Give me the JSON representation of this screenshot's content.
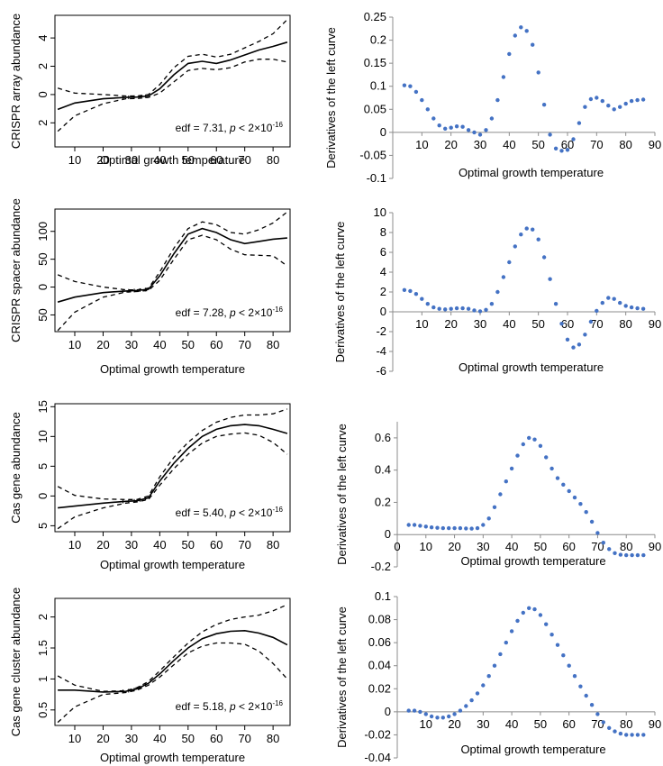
{
  "chart_data": [
    {
      "panel": "a-left",
      "type": "line",
      "xlabel": "Optimal growth temperature",
      "ylabel": "CRISPR array abundance",
      "annotation": {
        "pre": "edf = 7.31, ",
        "p": "p",
        "mid": " < 2×10",
        "exp": "-16"
      },
      "xlim": [
        3,
        86
      ],
      "ylim": [
        -3.7,
        5.6
      ],
      "xticks": [
        10,
        20,
        30,
        40,
        50,
        60,
        70,
        80
      ],
      "xtick_labels": [
        "10",
        "20",
        "30",
        "40",
        "50",
        "60",
        "70",
        "80"
      ],
      "yticks": [
        4,
        2,
        0,
        -2
      ],
      "ytick_labels": [
        "4",
        "2",
        "0",
        "2"
      ],
      "x": [
        4,
        10,
        20,
        28,
        32,
        36,
        40,
        45,
        50,
        55,
        60,
        65,
        70,
        75,
        80,
        85
      ],
      "series": [
        {
          "style": "solid",
          "values": [
            -1.05,
            -0.6,
            -0.3,
            -0.2,
            -0.18,
            -0.1,
            0.4,
            1.4,
            2.2,
            2.35,
            2.2,
            2.45,
            2.8,
            3.15,
            3.4,
            3.7
          ]
        },
        {
          "style": "dashed",
          "values": [
            0.45,
            0.1,
            0.0,
            -0.1,
            -0.1,
            0.0,
            0.7,
            1.9,
            2.7,
            2.85,
            2.65,
            2.85,
            3.3,
            3.75,
            4.3,
            5.3
          ]
        },
        {
          "style": "dashed",
          "values": [
            -2.6,
            -1.5,
            -0.65,
            -0.3,
            -0.28,
            -0.2,
            0.1,
            0.9,
            1.7,
            1.85,
            1.75,
            1.9,
            2.3,
            2.5,
            2.5,
            2.3
          ]
        }
      ]
    },
    {
      "panel": "a-right",
      "type": "scatter",
      "xlabel": "Optimal growth temperature",
      "ylabel": "Derivatives of the left curve",
      "xlim": [
        0,
        90
      ],
      "ylim": [
        -0.1,
        0.25
      ],
      "xticks": [
        10,
        20,
        30,
        40,
        50,
        60,
        70,
        80,
        90
      ],
      "yticks": [
        -0.1,
        -0.05,
        0,
        0.05,
        0.1,
        0.15,
        0.2,
        0.25
      ],
      "ytick_labels": [
        "-0.1",
        "-0.05",
        "0",
        "0.05",
        "0.1",
        "0.15",
        "0.2",
        "0.25"
      ],
      "x": [
        4,
        6,
        8,
        10,
        12,
        14,
        16,
        18,
        20,
        22,
        24,
        26,
        28,
        30,
        32,
        34,
        36,
        38,
        40,
        42,
        44,
        46,
        48,
        50,
        52,
        54,
        56,
        58,
        60,
        62,
        64,
        66,
        68,
        70,
        72,
        74,
        76,
        78,
        80,
        82,
        84,
        86
      ],
      "y": [
        0.102,
        0.1,
        0.088,
        0.07,
        0.05,
        0.03,
        0.015,
        0.008,
        0.01,
        0.013,
        0.012,
        0.005,
        0.0,
        -0.005,
        0.005,
        0.03,
        0.07,
        0.12,
        0.17,
        0.21,
        0.228,
        0.22,
        0.19,
        0.13,
        0.06,
        -0.005,
        -0.035,
        -0.04,
        -0.038,
        -0.015,
        0.02,
        0.055,
        0.072,
        0.075,
        0.068,
        0.058,
        0.05,
        0.055,
        0.062,
        0.068,
        0.07,
        0.071
      ]
    },
    {
      "panel": "b-left",
      "type": "line",
      "xlabel": "Optimal growth temperature",
      "ylabel": "CRISPR spacer abundance",
      "annotation": {
        "pre": "edf = 7.28, ",
        "p": "p",
        "mid": " < 2×10",
        "exp": "-16"
      },
      "xlim": [
        3,
        86
      ],
      "ylim": [
        -80,
        140
      ],
      "xticks": [
        10,
        20,
        30,
        40,
        50,
        60,
        70,
        80
      ],
      "xtick_labels": [
        "10",
        "20",
        "30",
        "40",
        "50",
        "60",
        "70",
        "80"
      ],
      "yticks": [
        100,
        50,
        0,
        -50
      ],
      "ytick_labels": [
        "100",
        "50",
        "0",
        "50"
      ],
      "x": [
        4,
        10,
        20,
        28,
        32,
        36,
        40,
        45,
        50,
        55,
        60,
        65,
        70,
        75,
        80,
        85
      ],
      "series": [
        {
          "style": "solid",
          "values": [
            -27,
            -18,
            -10,
            -7,
            -6,
            -4,
            20,
            60,
            95,
            105,
            98,
            85,
            78,
            82,
            86,
            88
          ]
        },
        {
          "style": "dashed",
          "values": [
            22,
            10,
            0,
            -5,
            -5,
            -2,
            27,
            70,
            105,
            117,
            112,
            98,
            95,
            103,
            115,
            135
          ]
        },
        {
          "style": "dashed",
          "values": [
            -78,
            -45,
            -18,
            -9,
            -8,
            -6,
            12,
            50,
            85,
            93,
            85,
            68,
            58,
            57,
            56,
            38
          ]
        }
      ]
    },
    {
      "panel": "b-right",
      "type": "scatter",
      "xlabel": "Optimal growth temperature",
      "ylabel": "Derivatives of the left curve",
      "xlim": [
        0,
        90
      ],
      "ylim": [
        -6,
        10
      ],
      "xticks": [
        10,
        20,
        30,
        40,
        50,
        60,
        70,
        80,
        90
      ],
      "yticks": [
        -6,
        -4,
        -2,
        0,
        2,
        4,
        6,
        8,
        10
      ],
      "ytick_labels": [
        "-6",
        "-4",
        "-2",
        "0",
        "2",
        "4",
        "6",
        "8",
        "10"
      ],
      "x": [
        4,
        6,
        8,
        10,
        12,
        14,
        16,
        18,
        20,
        22,
        24,
        26,
        28,
        30,
        32,
        34,
        36,
        38,
        40,
        42,
        44,
        46,
        48,
        50,
        52,
        54,
        56,
        58,
        60,
        62,
        64,
        66,
        68,
        70,
        72,
        74,
        76,
        78,
        80,
        82,
        84,
        86
      ],
      "y": [
        2.2,
        2.1,
        1.8,
        1.3,
        0.8,
        0.45,
        0.3,
        0.25,
        0.3,
        0.35,
        0.35,
        0.3,
        0.15,
        0.05,
        0.2,
        0.8,
        2.0,
        3.5,
        5.0,
        6.6,
        7.8,
        8.4,
        8.3,
        7.3,
        5.5,
        3.3,
        0.8,
        -1.2,
        -2.8,
        -3.6,
        -3.3,
        -2.3,
        -1.0,
        0.1,
        0.9,
        1.4,
        1.3,
        0.9,
        0.6,
        0.45,
        0.35,
        0.3
      ]
    },
    {
      "panel": "c-left",
      "type": "line",
      "xlabel": "Optimal growth temperature",
      "ylabel": "Cas gene abundance",
      "annotation": {
        "pre": "edf = 5.40, ",
        "p": "p",
        "mid": " < 2×10",
        "exp": "-16"
      },
      "xlim": [
        3,
        86
      ],
      "ylim": [
        -6,
        15.5
      ],
      "xticks": [
        10,
        20,
        30,
        40,
        50,
        60,
        70,
        80
      ],
      "xtick_labels": [
        "10",
        "20",
        "30",
        "40",
        "50",
        "60",
        "70",
        "80"
      ],
      "yticks": [
        15,
        10,
        5,
        0,
        -5
      ],
      "ytick_labels": [
        "15",
        "10",
        "5",
        "0",
        "5"
      ],
      "x": [
        4,
        10,
        20,
        28,
        32,
        36,
        40,
        45,
        50,
        55,
        60,
        65,
        70,
        75,
        80,
        85
      ],
      "series": [
        {
          "style": "solid",
          "values": [
            -2.0,
            -1.7,
            -1.2,
            -0.9,
            -0.8,
            -0.3,
            2.5,
            5.5,
            8.0,
            10.0,
            11.2,
            11.8,
            12.0,
            11.8,
            11.2,
            10.5
          ]
        },
        {
          "style": "dashed",
          "values": [
            1.6,
            0.1,
            -0.5,
            -0.6,
            -0.6,
            0.0,
            3.2,
            6.5,
            9.0,
            11.0,
            12.4,
            13.2,
            13.6,
            13.6,
            13.8,
            14.6
          ]
        },
        {
          "style": "dashed",
          "values": [
            -5.5,
            -3.5,
            -2.0,
            -1.2,
            -1.0,
            -0.6,
            1.8,
            4.6,
            7.0,
            8.9,
            10.0,
            10.4,
            10.6,
            10.2,
            9.0,
            7.0
          ]
        }
      ]
    },
    {
      "panel": "c-right",
      "type": "scatter",
      "xlabel": "Optimal growth temperature",
      "ylabel": "Derivatives of the left curve",
      "xlim": [
        0,
        90
      ],
      "ylim": [
        -0.2,
        0.7
      ],
      "xticks": [
        0,
        10,
        20,
        30,
        40,
        50,
        60,
        70,
        80,
        90
      ],
      "yticks": [
        -0.2,
        0,
        0.2,
        0.4,
        0.6
      ],
      "ytick_labels": [
        "-0.2",
        "0",
        "0.2",
        "0.4",
        "0.6"
      ],
      "x": [
        4,
        6,
        8,
        10,
        12,
        14,
        16,
        18,
        20,
        22,
        24,
        26,
        28,
        30,
        32,
        34,
        36,
        38,
        40,
        42,
        44,
        46,
        48,
        50,
        52,
        54,
        56,
        58,
        60,
        62,
        64,
        66,
        68,
        70,
        72,
        74,
        76,
        78,
        80,
        82,
        84,
        86
      ],
      "y": [
        0.06,
        0.06,
        0.055,
        0.05,
        0.045,
        0.042,
        0.04,
        0.04,
        0.04,
        0.04,
        0.038,
        0.037,
        0.04,
        0.06,
        0.1,
        0.17,
        0.25,
        0.33,
        0.41,
        0.49,
        0.56,
        0.6,
        0.59,
        0.55,
        0.48,
        0.41,
        0.35,
        0.31,
        0.27,
        0.23,
        0.19,
        0.14,
        0.08,
        0.01,
        -0.05,
        -0.09,
        -0.115,
        -0.125,
        -0.128,
        -0.128,
        -0.128,
        -0.128
      ]
    },
    {
      "panel": "d-left",
      "type": "line",
      "xlabel": "Optimal growth temperature",
      "ylabel": "Cas gene cluster abundance",
      "annotation": {
        "pre": "edf = 5.18, ",
        "p": "p",
        "mid": " < 2×10",
        "exp": "-16"
      },
      "xlim": [
        3,
        86
      ],
      "ylim": [
        0.25,
        2.3
      ],
      "xticks": [
        10,
        20,
        30,
        40,
        50,
        60,
        70,
        80
      ],
      "xtick_labels": [
        "10",
        "20",
        "30",
        "40",
        "50",
        "60",
        "70",
        "80"
      ],
      "yticks": [
        2.0,
        1.5,
        1.0,
        0.5
      ],
      "ytick_labels": [
        "2",
        "1.5",
        "1",
        "0.5"
      ],
      "x": [
        4,
        10,
        20,
        28,
        32,
        36,
        40,
        45,
        50,
        55,
        60,
        65,
        70,
        75,
        80,
        85
      ],
      "series": [
        {
          "style": "solid",
          "values": [
            0.82,
            0.82,
            0.79,
            0.8,
            0.84,
            0.93,
            1.08,
            1.3,
            1.5,
            1.65,
            1.73,
            1.77,
            1.78,
            1.74,
            1.67,
            1.55
          ]
        },
        {
          "style": "dashed",
          "values": [
            1.05,
            0.9,
            0.8,
            0.81,
            0.86,
            0.96,
            1.13,
            1.36,
            1.58,
            1.76,
            1.88,
            1.96,
            2.0,
            2.03,
            2.1,
            2.2
          ]
        },
        {
          "style": "dashed",
          "values": [
            0.3,
            0.55,
            0.75,
            0.78,
            0.82,
            0.9,
            1.03,
            1.23,
            1.42,
            1.53,
            1.58,
            1.58,
            1.56,
            1.45,
            1.25,
            1.0
          ]
        }
      ]
    },
    {
      "panel": "d-right",
      "type": "scatter",
      "xlabel": "Optimal growth temperature",
      "ylabel": "Derivatives of the left curve",
      "xlim": [
        0,
        90
      ],
      "ylim": [
        -0.04,
        0.1
      ],
      "xticks": [
        10,
        20,
        30,
        40,
        50,
        60,
        70,
        80,
        90
      ],
      "yticks": [
        -0.04,
        -0.02,
        0,
        0.02,
        0.04,
        0.06,
        0.08,
        0.1
      ],
      "ytick_labels": [
        "-0.04",
        "-0.02",
        "0",
        "0.02",
        "0.04",
        "0.06",
        "0.08",
        "0.1"
      ],
      "x": [
        4,
        6,
        8,
        10,
        12,
        14,
        16,
        18,
        20,
        22,
        24,
        26,
        28,
        30,
        32,
        34,
        36,
        38,
        40,
        42,
        44,
        46,
        48,
        50,
        52,
        54,
        56,
        58,
        60,
        62,
        64,
        66,
        68,
        70,
        72,
        74,
        76,
        78,
        80,
        82,
        84,
        86
      ],
      "y": [
        0.001,
        0.001,
        0.0,
        -0.002,
        -0.004,
        -0.005,
        -0.005,
        -0.004,
        -0.002,
        0.001,
        0.005,
        0.01,
        0.016,
        0.023,
        0.031,
        0.04,
        0.05,
        0.06,
        0.07,
        0.079,
        0.086,
        0.09,
        0.089,
        0.084,
        0.076,
        0.067,
        0.058,
        0.049,
        0.04,
        0.031,
        0.022,
        0.014,
        0.006,
        -0.002,
        -0.009,
        -0.014,
        -0.017,
        -0.019,
        -0.02,
        -0.02,
        -0.02,
        -0.02
      ]
    }
  ]
}
